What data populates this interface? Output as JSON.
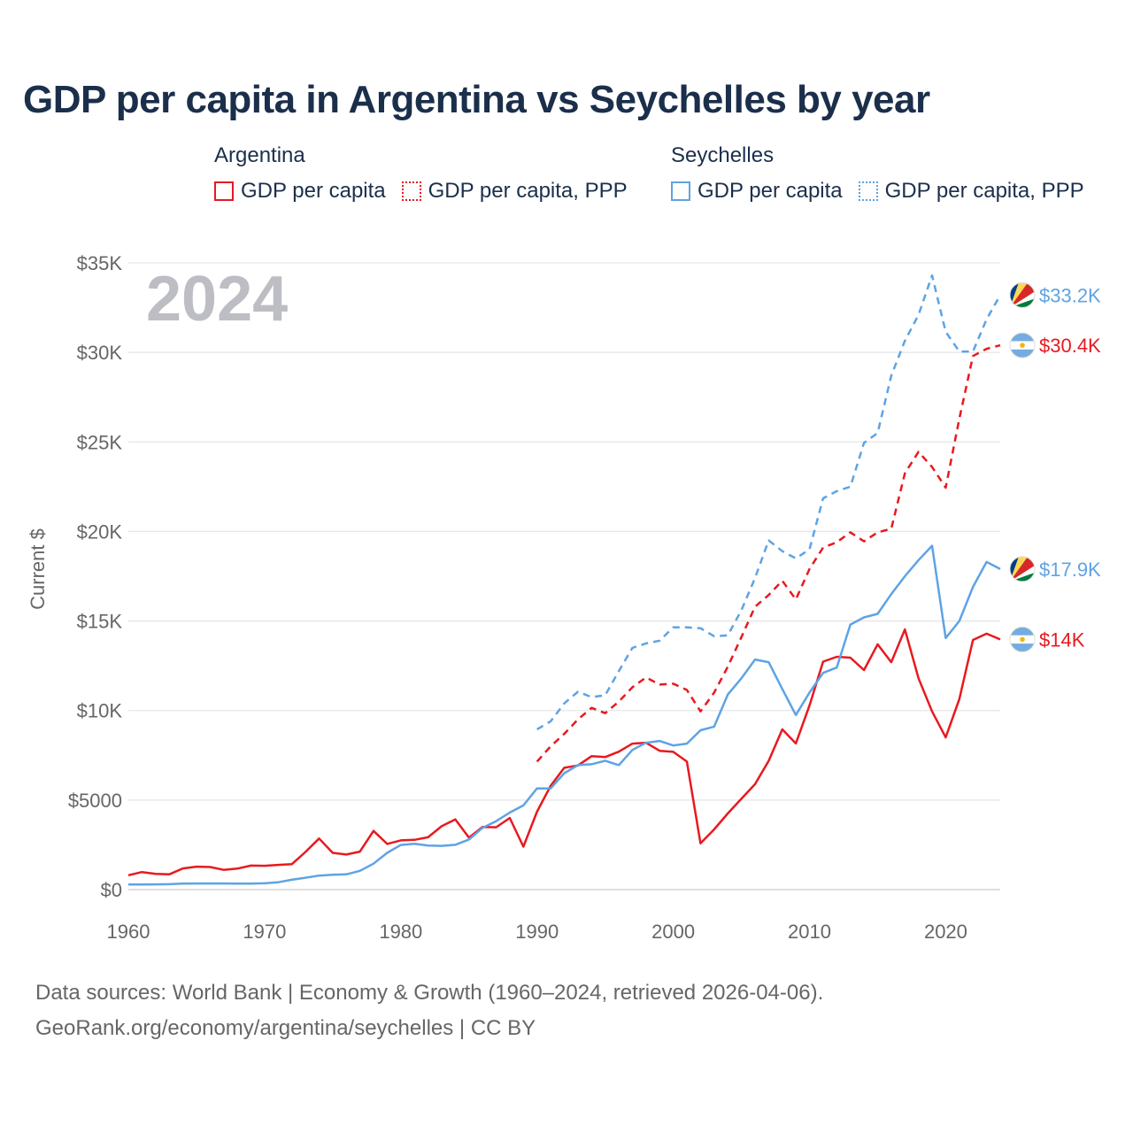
{
  "title": "GDP per capita in Argentina vs Seychelles by year",
  "legend": {
    "groups": [
      {
        "label": "Argentina",
        "items": [
          {
            "label": "GDP per capita",
            "style": "solid",
            "color": "#e8191f"
          },
          {
            "label": "GDP per capita, PPP",
            "style": "dotted",
            "color": "#e8191f"
          }
        ]
      },
      {
        "label": "Seychelles",
        "items": [
          {
            "label": "GDP per capita",
            "style": "solid",
            "color": "#5ea3e4"
          },
          {
            "label": "GDP per capita, PPP",
            "style": "dotted",
            "color": "#5ea3e4"
          }
        ]
      }
    ]
  },
  "chart_data": {
    "type": "line",
    "title": "GDP per capita in Argentina vs Seychelles by year",
    "ylabel": "Current $",
    "xlabel": "",
    "xlim": [
      1960,
      2024
    ],
    "ylim": [
      0,
      35000
    ],
    "x_ticks": [
      1960,
      1970,
      1980,
      1990,
      2000,
      2010,
      2020
    ],
    "x_tick_labels": [
      "1960",
      "1970",
      "1980",
      "1990",
      "2000",
      "2010",
      "2020"
    ],
    "y_ticks": [
      0,
      5000,
      10000,
      15000,
      20000,
      25000,
      30000,
      35000
    ],
    "y_tick_labels": [
      "$0",
      "$5000",
      "$10K",
      "$15K",
      "$20K",
      "$25K",
      "$30K",
      "$35K"
    ],
    "grid": true,
    "year_label": "2024",
    "series": [
      {
        "name": "Argentina GDP per capita",
        "country": "Argentina",
        "color": "#e8191f",
        "dash": false,
        "start": 1960,
        "values": [
          800,
          980,
          880,
          850,
          1180,
          1280,
          1260,
          1100,
          1170,
          1340,
          1330,
          1380,
          1420,
          2100,
          2850,
          2050,
          1960,
          2120,
          3280,
          2550,
          2750,
          2780,
          2920,
          3540,
          3920,
          2900,
          3500,
          3480,
          4000,
          2400,
          4350,
          5800,
          6800,
          6930,
          7450,
          7400,
          7700,
          8150,
          8200,
          7750,
          7690,
          7150,
          2580,
          3360,
          4250,
          5070,
          5890,
          7190,
          8950,
          8160,
          10280,
          12730,
          13000,
          12950,
          12260,
          13700,
          12700,
          14530,
          11800,
          9950,
          8500,
          10640,
          13940,
          14290,
          13970
        ],
        "end_label": "$14K"
      },
      {
        "name": "Argentina GDP per capita, PPP",
        "country": "Argentina",
        "color": "#e8191f",
        "dash": true,
        "start": 1990,
        "values": [
          7150,
          8000,
          8700,
          9500,
          10150,
          9850,
          10500,
          11300,
          11850,
          11450,
          11500,
          11150,
          9950,
          11000,
          12450,
          14100,
          15800,
          16450,
          17250,
          16200,
          17900,
          19100,
          19400,
          19950,
          19450,
          19950,
          20150,
          23250,
          24450,
          23600,
          22450,
          26300,
          29800,
          30200,
          30400
        ],
        "end_label": "$30.4K"
      },
      {
        "name": "Seychelles GDP per capita",
        "country": "Seychelles",
        "color": "#5ea3e4",
        "dash": false,
        "start": 1960,
        "values": [
          280,
          280,
          290,
          300,
          330,
          340,
          340,
          340,
          330,
          330,
          350,
          410,
          550,
          660,
          780,
          830,
          850,
          1050,
          1450,
          2050,
          2490,
          2560,
          2460,
          2440,
          2500,
          2800,
          3450,
          3820,
          4300,
          4700,
          5650,
          5650,
          6500,
          6950,
          7000,
          7200,
          6950,
          7800,
          8200,
          8300,
          8050,
          8150,
          8900,
          9100,
          10890,
          11800,
          12850,
          12700,
          11200,
          9750,
          11000,
          12100,
          12400,
          14800,
          15200,
          15400,
          16500,
          17500,
          18400,
          19200,
          14050,
          15000,
          16900,
          18300,
          17900
        ],
        "end_label": "$17.9K"
      },
      {
        "name": "Seychelles GDP per capita, PPP",
        "country": "Seychelles",
        "color": "#5ea3e4",
        "dash": true,
        "start": 1990,
        "values": [
          8950,
          9400,
          10400,
          11050,
          10750,
          10850,
          12200,
          13500,
          13750,
          13900,
          14650,
          14650,
          14600,
          14150,
          14200,
          15600,
          17400,
          19500,
          18900,
          18500,
          19000,
          21850,
          22250,
          22500,
          24950,
          25500,
          28700,
          30650,
          32100,
          34300,
          31150,
          30050,
          30050,
          31850,
          33200
        ],
        "end_label": "$33.2K"
      }
    ]
  },
  "sources": {
    "line1": "Data sources: World Bank | Economy & Growth (1960–2024, retrieved 2026-04-06).",
    "line2": "GeoRank.org/economy/argentina/seychelles | CC BY"
  }
}
